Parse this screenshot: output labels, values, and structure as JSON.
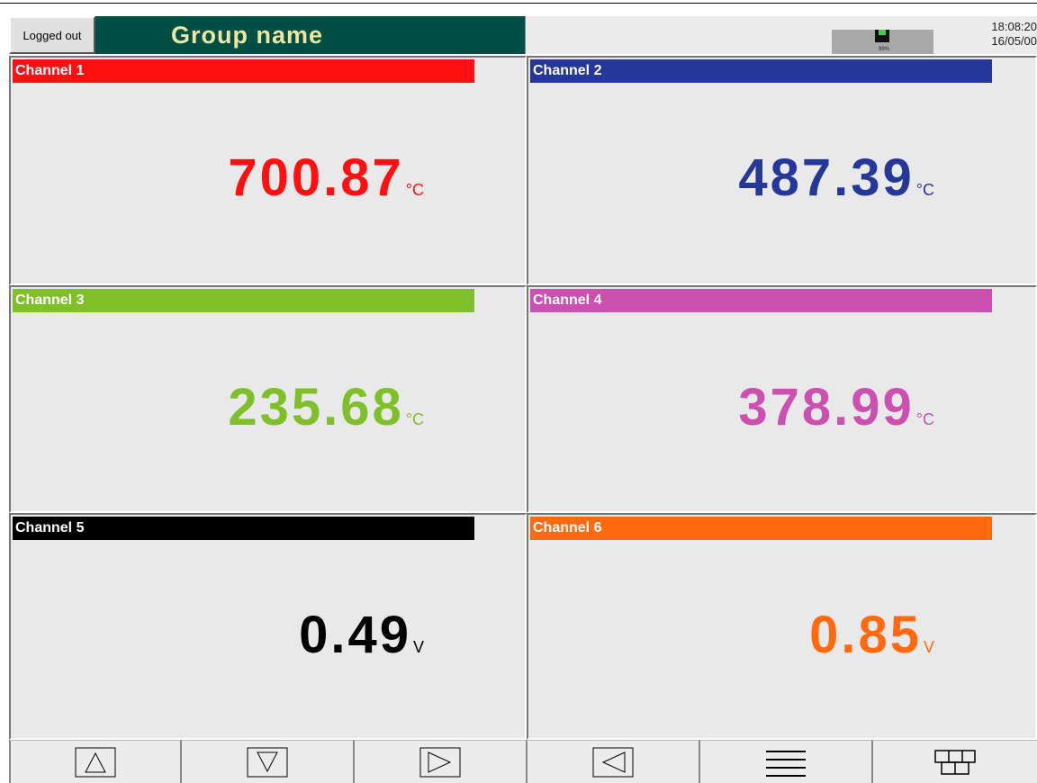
{
  "header": {
    "status": "Logged out",
    "title": "Group name",
    "battery": "99%",
    "time": "18:08:20",
    "date": "16/05/00"
  },
  "channels": [
    {
      "name": "Channel 1",
      "value": "700.87",
      "unit": "°C",
      "color": "#ff1010"
    },
    {
      "name": "Channel 2",
      "value": "487.39",
      "unit": "°C",
      "color": "#25389a"
    },
    {
      "name": "Channel 3",
      "value": "235.68",
      "unit": "°C",
      "color": "#7fbf2a"
    },
    {
      "name": "Channel 4",
      "value": "378.99",
      "unit": "°C",
      "color": "#cc50b0"
    },
    {
      "name": "Channel 5",
      "value": "0.49",
      "unit": "V",
      "color": "#000000"
    },
    {
      "name": "Channel 6",
      "value": "0.85",
      "unit": "V",
      "color": "#ff6a10"
    }
  ]
}
